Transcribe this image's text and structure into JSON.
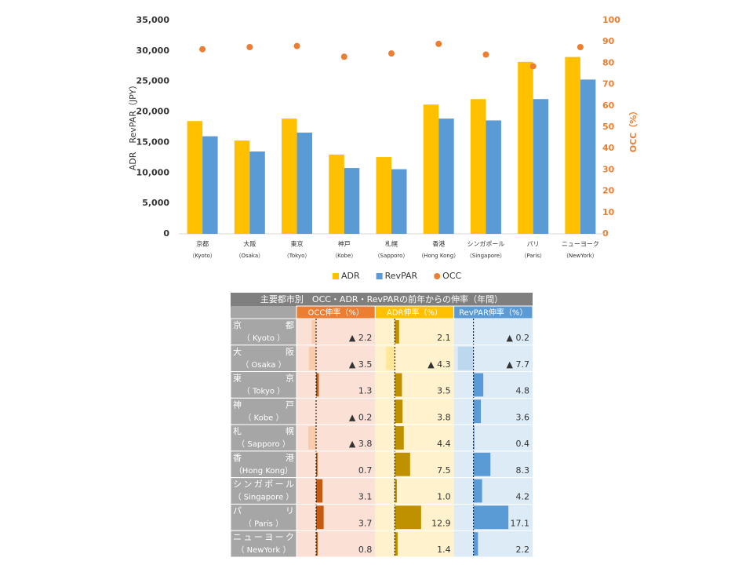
{
  "chart_data": {
    "type": "bar",
    "categories": [
      "京都",
      "大阪",
      "東京",
      "神戸",
      "札幌",
      "香港",
      "シンガポール",
      "パリ",
      "ニューヨーク"
    ],
    "category_sublabels": [
      "（Kyoto）",
      "（Osaka）",
      "（Tokyo）",
      "（Kobe）",
      "（Sapporo）",
      "（Hong Kong）",
      "（Singapore）",
      "（Paris）",
      "（NewYork）"
    ],
    "y_label": "ADR　RevPAR（JPY）",
    "y2_label": "OCC（%）",
    "series": [
      {
        "name": "ADR",
        "type": "bar",
        "color": "#ffc000",
        "values": [
          18500,
          15300,
          18900,
          13000,
          12600,
          21200,
          22100,
          28200,
          29000
        ]
      },
      {
        "name": "RevPAR",
        "type": "bar",
        "color": "#5b9bd5",
        "values": [
          16000,
          13500,
          16600,
          10800,
          10600,
          18900,
          18600,
          22100,
          25300
        ]
      },
      {
        "name": "OCC",
        "type": "scatter",
        "axis": "y2",
        "color": "#ed7d31",
        "values": [
          86.5,
          87.5,
          88,
          83,
          84.5,
          89,
          84,
          78.5,
          87.5
        ]
      }
    ],
    "ylim": [
      0,
      35000
    ],
    "yticks": [
      0,
      {
        "value": 5000,
        "label": "5,000"
      },
      {
        "value": 10000,
        "label": "10,000"
      },
      {
        "value": 15000,
        "label": "15,000"
      },
      {
        "value": 20000,
        "label": "20,000"
      },
      {
        "value": 25000,
        "label": "25,000"
      },
      {
        "value": 30000,
        "label": "30,000"
      },
      {
        "value": 35000,
        "label": "35,000"
      }
    ],
    "y2lim": [
      0,
      100
    ],
    "y2ticks": [
      0,
      10,
      20,
      30,
      40,
      50,
      60,
      70,
      80,
      90,
      100
    ],
    "legend": "bottom"
  },
  "table": {
    "title": "主要都市別　OCC・ADR・RevPARの前年からの伸率（年間）",
    "cities": [
      "京都",
      "大阪",
      "東京",
      "神戸",
      "札幌",
      "香港",
      "シンガポール",
      "パリ",
      "ニューヨーク"
    ],
    "cities_en": [
      "（ Kyoto ）",
      "（ Osaka ）",
      "（ Tokyo ）",
      "（ Kobe ）",
      "（ Sapporo ）",
      "（Hong Kong）",
      "（ Singapore ）",
      "（ Paris ）",
      "（ NewYork ）"
    ],
    "columns": [
      {
        "header": "OCC伸率（%）",
        "header_color": "#ed7d31",
        "background": "#fbe0d5",
        "color": "#c55a11",
        "negative_color": "#f8cbad",
        "values": [
          -2.2,
          -3.5,
          1.3,
          -0.2,
          -3.8,
          0.7,
          3.1,
          3.7,
          0.8
        ],
        "value_labels": [
          "▲ 2.2",
          "▲ 3.5",
          "1.3",
          "▲ 0.2",
          "▲ 3.8",
          "0.7",
          "3.1",
          "3.7",
          "0.8"
        ]
      },
      {
        "header": "ADR伸率（%）",
        "header_color": "#ffc000",
        "background": "#fff2cc",
        "color": "#bf9000",
        "negative_color": "#ffe699",
        "values": [
          2.1,
          -4.3,
          3.5,
          3.8,
          4.4,
          7.5,
          1,
          12.9,
          1.4
        ],
        "value_labels": [
          "2.1",
          "▲ 4.3",
          "3.5",
          "3.8",
          "4.4",
          "7.5",
          "1.0",
          "12.9",
          "1.4"
        ]
      },
      {
        "header": "RevPAR伸率（%）",
        "header_color": "#5b9bd5",
        "background": "#ddebf7",
        "color": "#5b9bd5",
        "negative_color": "#bdd7ee",
        "values": [
          -0.2,
          -7.7,
          4.8,
          3.6,
          0.4,
          8.3,
          4.2,
          17.1,
          2.2
        ],
        "value_labels": [
          "▲ 0.2",
          "▲ 7.7",
          "4.8",
          "3.6",
          "0.4",
          "8.3",
          "4.2",
          "17.1",
          "2.2"
        ]
      }
    ]
  }
}
